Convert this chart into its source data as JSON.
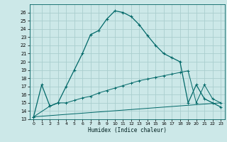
{
  "xlabel": "Humidex (Indice chaleur)",
  "bg_color": "#cce8e8",
  "grid_color": "#aacece",
  "line_color": "#006868",
  "xlim": [
    -0.5,
    23.5
  ],
  "ylim": [
    13,
    27
  ],
  "yticks": [
    13,
    14,
    15,
    16,
    17,
    18,
    19,
    20,
    21,
    22,
    23,
    24,
    25,
    26
  ],
  "xticks": [
    0,
    1,
    2,
    3,
    4,
    5,
    6,
    7,
    8,
    9,
    10,
    11,
    12,
    13,
    14,
    15,
    16,
    17,
    18,
    19,
    20,
    21,
    22,
    23
  ],
  "line1_x": [
    0,
    1,
    2,
    3,
    4,
    5,
    6,
    7,
    8,
    9,
    10,
    11,
    12,
    13,
    14,
    15,
    16,
    17,
    18,
    19,
    20,
    21,
    22,
    23
  ],
  "line1_y": [
    13.3,
    17.2,
    14.6,
    15.0,
    17.0,
    19.0,
    21.0,
    23.3,
    23.8,
    25.2,
    26.2,
    26.0,
    25.5,
    24.5,
    23.2,
    22.0,
    21.0,
    20.5,
    20.0,
    15.0,
    17.2,
    15.5,
    15.0,
    14.5
  ],
  "line2_x": [
    0,
    2,
    3,
    4,
    5,
    6,
    7,
    8,
    9,
    10,
    11,
    12,
    13,
    14,
    15,
    16,
    17,
    18,
    19,
    20,
    21,
    22,
    23
  ],
  "line2_y": [
    13.3,
    14.6,
    15.0,
    15.0,
    15.3,
    15.6,
    15.8,
    16.2,
    16.5,
    16.8,
    17.1,
    17.4,
    17.7,
    17.9,
    18.1,
    18.3,
    18.5,
    18.7,
    18.9,
    15.0,
    17.2,
    15.5,
    15.0
  ],
  "line3_x": [
    0,
    23
  ],
  "line3_y": [
    13.3,
    15.0
  ]
}
